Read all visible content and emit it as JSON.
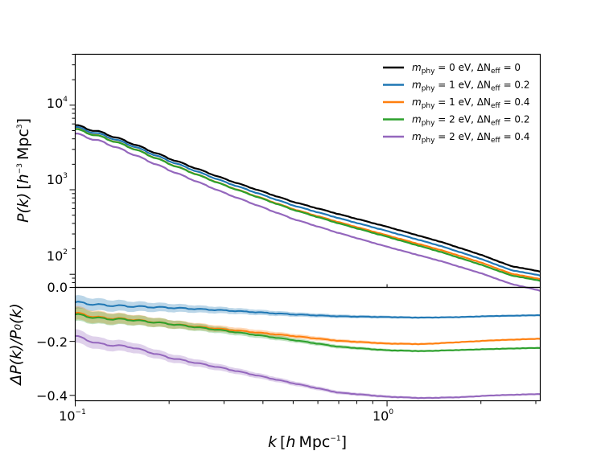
{
  "chart_data": {
    "type": "line",
    "x_scale": "log",
    "xlabel": {
      "main": "k",
      "bracket_open": "[",
      "unit_h": "h",
      "unit": "Mpc",
      "exp": "−1",
      "bracket_close": "]"
    },
    "xlim": [
      0.1,
      3.1
    ],
    "x_ticks": [
      {
        "value": 0.1,
        "base": "10",
        "exp": "−1"
      },
      {
        "value": 1.0,
        "base": "10",
        "exp": "0"
      }
    ],
    "top_panel": {
      "y_scale": "log",
      "ylim": [
        70,
        40000
      ],
      "ylabel": {
        "main": "P(k)",
        "bracket_open": "[",
        "unit_h": "h",
        "exp_h": "−3",
        "unit": "Mpc",
        "exp_mpc": "3",
        "bracket_close": "]"
      },
      "y_ticks": [
        {
          "value": 100,
          "base": "10",
          "exp": "2"
        },
        {
          "value": 1000,
          "base": "10",
          "exp": "3"
        },
        {
          "value": 10000,
          "base": "10",
          "exp": "4"
        }
      ]
    },
    "bottom_panel": {
      "y_scale": "linear",
      "ylim": [
        -0.42,
        0.0
      ],
      "ylabel": "ΔP(k)/P₀(k)",
      "y_ticks": [
        {
          "value": 0.0,
          "label": "0.0"
        },
        {
          "value": -0.2,
          "label": "−0.2"
        },
        {
          "value": -0.4,
          "label": "−0.4"
        }
      ]
    },
    "legend": {
      "position": "top-right",
      "m_symbol": "m",
      "m_sub": "phy",
      "n_prefix": "ΔN",
      "n_sub": "eff"
    },
    "series": [
      {
        "name": "mphy=0eV, ΔNeff=0",
        "m_text": " = 0 eV, ",
        "n_text": " = 0",
        "color": "#000000",
        "x": [
          0.1,
          0.125,
          0.15,
          0.2,
          0.3,
          0.5,
          0.7,
          1.0,
          1.5,
          2.0,
          2.5,
          3.1
        ],
        "y": [
          5800,
          4600,
          3600,
          2350,
          1350,
          720,
          515,
          365,
          240,
          170,
          125,
          108
        ],
        "ratio_x": [],
        "ratio_y": []
      },
      {
        "name": "mphy=1eV, ΔNeff=0.2",
        "m_text": " = 1 eV, ",
        "n_text": " = 0.2",
        "color": "#1f77b4",
        "x": [
          0.1,
          0.125,
          0.15,
          0.2,
          0.3,
          0.5,
          0.7,
          1.0,
          1.5,
          2.0,
          2.5,
          3.1
        ],
        "y": [
          5500,
          4330,
          3390,
          2195,
          1245,
          653,
          462,
          325,
          214,
          152,
          112,
          97
        ],
        "ratio_x": [
          0.1,
          0.12,
          0.15,
          0.2,
          0.3,
          0.5,
          0.7,
          1.0,
          1.3,
          1.7,
          2.2,
          3.1
        ],
        "ratio_y": [
          -0.055,
          -0.065,
          -0.07,
          -0.075,
          -0.085,
          -0.1,
          -0.107,
          -0.11,
          -0.112,
          -0.11,
          -0.106,
          -0.103
        ],
        "band": 0.025
      },
      {
        "name": "mphy=1eV, ΔNeff=0.4",
        "m_text": " = 1 eV, ",
        "n_text": " = 0.4",
        "color": "#ff7f0e",
        "x": [
          0.1,
          0.125,
          0.15,
          0.2,
          0.3,
          0.5,
          0.7,
          1.0,
          1.5,
          2.0,
          2.5,
          3.1
        ],
        "y": [
          5240,
          4080,
          3190,
          2040,
          1140,
          591,
          414,
          289,
          192,
          138,
          102,
          88
        ],
        "ratio_x": [
          0.1,
          0.12,
          0.15,
          0.2,
          0.3,
          0.5,
          0.7,
          1.0,
          1.3,
          1.7,
          2.2,
          3.1
        ],
        "ratio_y": [
          -0.095,
          -0.112,
          -0.118,
          -0.135,
          -0.155,
          -0.18,
          -0.198,
          -0.208,
          -0.21,
          -0.203,
          -0.196,
          -0.19
        ],
        "band": 0.025
      },
      {
        "name": "mphy=2eV, ΔNeff=0.2",
        "m_text": " = 2 eV, ",
        "n_text": " = 0.2",
        "color": "#2ca02c",
        "x": [
          0.1,
          0.125,
          0.15,
          0.2,
          0.3,
          0.5,
          0.7,
          1.0,
          1.5,
          2.0,
          2.5,
          3.1
        ],
        "y": [
          5210,
          4060,
          3175,
          2030,
          1133,
          580,
          400,
          278,
          182,
          130,
          97,
          84
        ],
        "ratio_x": [
          0.1,
          0.12,
          0.15,
          0.2,
          0.3,
          0.5,
          0.7,
          1.0,
          1.3,
          1.7,
          2.2,
          3.1
        ],
        "ratio_y": [
          -0.1,
          -0.115,
          -0.12,
          -0.135,
          -0.16,
          -0.195,
          -0.22,
          -0.233,
          -0.236,
          -0.232,
          -0.228,
          -0.224
        ],
        "band": 0.025
      },
      {
        "name": "mphy=2eV, ΔNeff=0.4",
        "m_text": " = 2 eV, ",
        "n_text": " = 0.4",
        "color": "#9467bd",
        "x": [
          0.1,
          0.125,
          0.15,
          0.2,
          0.3,
          0.5,
          0.7,
          1.0,
          1.5,
          2.0,
          2.5,
          3.1
        ],
        "y": [
          4620,
          3570,
          2720,
          1710,
          920,
          452,
          308,
          212,
          142,
          103,
          77,
          64
        ],
        "ratio_x": [
          0.1,
          0.12,
          0.15,
          0.2,
          0.3,
          0.5,
          0.7,
          1.0,
          1.3,
          1.7,
          2.2,
          3.1
        ],
        "ratio_y": [
          -0.18,
          -0.21,
          -0.22,
          -0.26,
          -0.3,
          -0.355,
          -0.39,
          -0.405,
          -0.41,
          -0.407,
          -0.4,
          -0.395
        ],
        "band": 0.025
      }
    ]
  }
}
